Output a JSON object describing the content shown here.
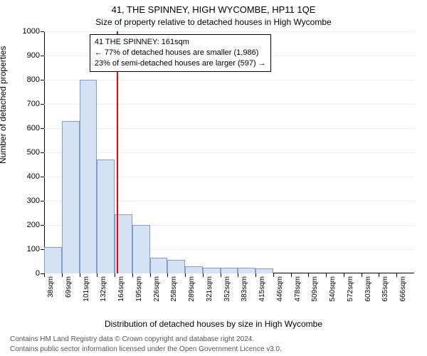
{
  "title_main": "41, THE SPINNEY, HIGH WYCOMBE, HP11 1QE",
  "title_sub": "Size of property relative to detached houses in High Wycombe",
  "ylabel": "Number of detached properties",
  "xlabel": "Distribution of detached houses by size in High Wycombe",
  "footer1": "Contains HM Land Registry data © Crown copyright and database right 2024.",
  "footer2": "Contains public sector information licensed under the Open Government Licence v3.0.",
  "chart": {
    "type": "histogram",
    "ylim": [
      0,
      1000
    ],
    "yticks": [
      0,
      100,
      200,
      300,
      400,
      500,
      600,
      700,
      800,
      900,
      1000
    ],
    "xticks_labels": [
      "38sqm",
      "69sqm",
      "101sqm",
      "132sqm",
      "164sqm",
      "195sqm",
      "226sqm",
      "258sqm",
      "289sqm",
      "321sqm",
      "352sqm",
      "383sqm",
      "415sqm",
      "446sqm",
      "478sqm",
      "509sqm",
      "540sqm",
      "572sqm",
      "603sqm",
      "635sqm",
      "666sqm"
    ],
    "bars": [
      110,
      630,
      800,
      470,
      245,
      200,
      65,
      55,
      30,
      25,
      25,
      25,
      22,
      0,
      0,
      0,
      0,
      0,
      0,
      0,
      0
    ],
    "bar_fill": "#d5e2f4",
    "bar_stroke": "#7f9dce",
    "grid_color": "#ececf4",
    "background": "#ffffff",
    "marker": {
      "value_sqm": 161,
      "x_min": 38,
      "x_max": 666,
      "color": "#ff0000"
    },
    "annot": {
      "line1": "41 THE SPINNEY: 161sqm",
      "line2": "← 77% of detached houses are smaller (1,986)",
      "line3": "23% of semi-detached houses are larger (597) →"
    }
  }
}
